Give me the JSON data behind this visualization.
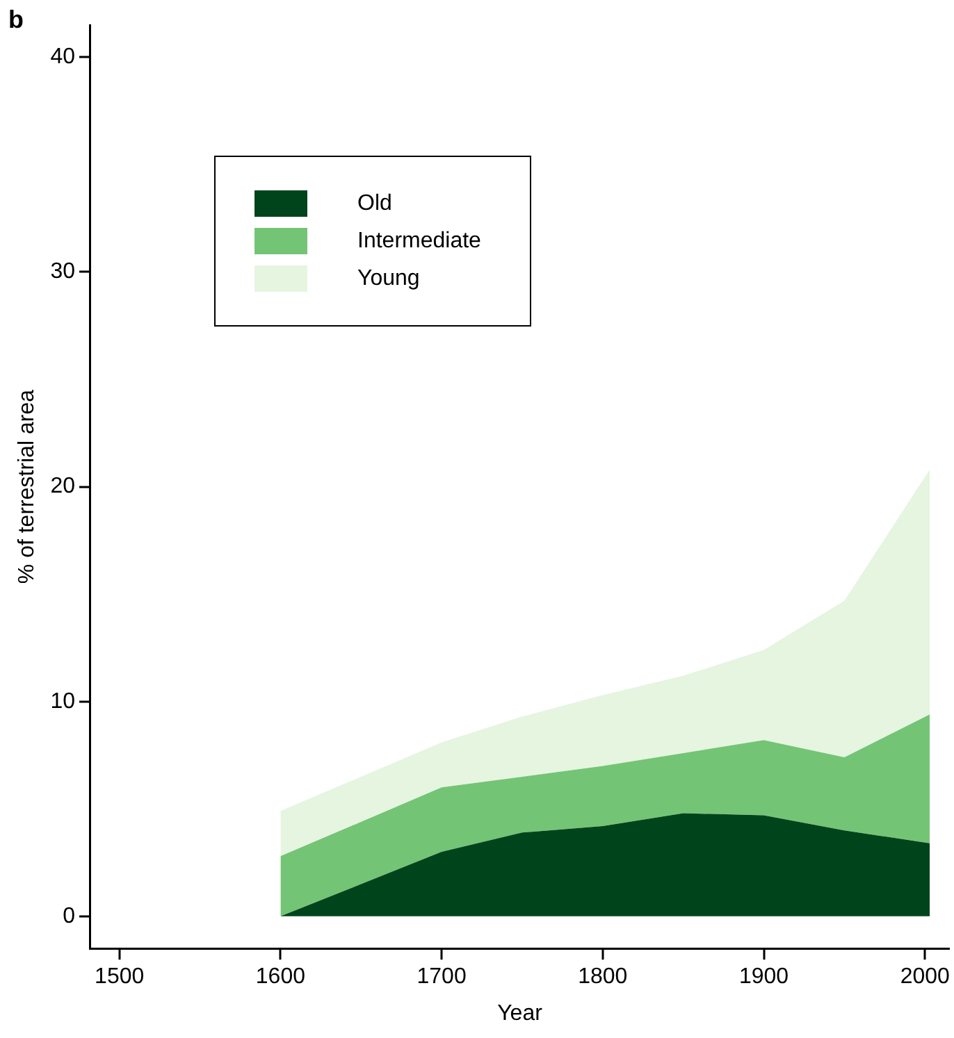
{
  "chart_data": {
    "type": "area",
    "stacked": true,
    "xlabel": "Year",
    "ylabel": "% of terrestrial area",
    "annotations": [
      "b"
    ],
    "x": [
      1600,
      1700,
      1750,
      1800,
      1850,
      1900,
      1950,
      2003
    ],
    "series": [
      {
        "name": "Old",
        "color": "#00441b",
        "values": [
          0,
          3.0,
          3.9,
          4.2,
          4.8,
          4.7,
          4.0,
          3.4
        ]
      },
      {
        "name": "Intermediate",
        "color": "#74c476",
        "values": [
          2.8,
          3.0,
          2.6,
          2.8,
          2.8,
          3.5,
          3.4,
          6.0
        ]
      },
      {
        "name": "Young",
        "color": "#e5f5e0",
        "values": [
          2.1,
          2.1,
          2.8,
          3.3,
          3.6,
          4.2,
          7.3,
          11.4
        ]
      }
    ],
    "xlim": [
      1482,
      2015
    ],
    "xticks": [
      1500,
      1600,
      1700,
      1800,
      1900,
      2000
    ],
    "ylim": [
      -1.5,
      41.5
    ],
    "yticks": [
      0,
      10,
      20,
      30,
      40
    ],
    "grid": false,
    "legend": "top left"
  }
}
